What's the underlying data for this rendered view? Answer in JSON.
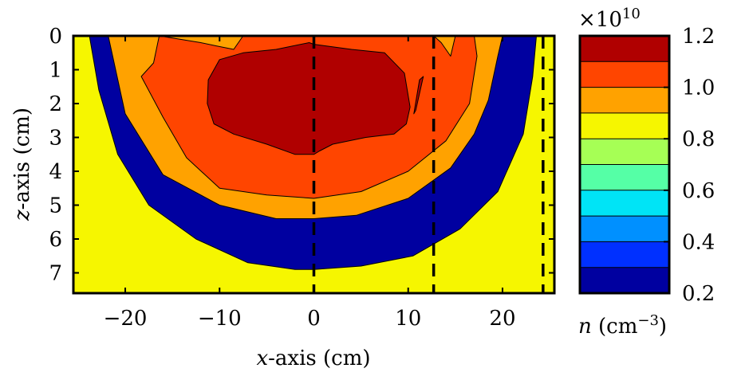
{
  "chart_data": {
    "type": "heatmap",
    "title": "",
    "xlabel_var": "x",
    "xlabel_rest": "-axis (cm)",
    "ylabel_var": "z",
    "ylabel_rest": "-axis (cm)",
    "xlim": [
      -25.5,
      25.5
    ],
    "ylim": [
      7.6,
      0
    ],
    "x_ticks": [
      -20,
      -10,
      0,
      10,
      20
    ],
    "x_tick_labels": [
      "−20",
      "−10",
      "0",
      "10",
      "20"
    ],
    "y_ticks": [
      0,
      1,
      2,
      3,
      4,
      5,
      6,
      7
    ],
    "y_tick_labels": [
      "0",
      "1",
      "2",
      "3",
      "4",
      "5",
      "6",
      "7"
    ],
    "dashed_lines_x": [
      0,
      12.7,
      24.3
    ],
    "colorbar": {
      "label_var": "n",
      "label_rest": " (cm",
      "label_exp": "−3",
      "label_close": ")",
      "multiplier_prefix": "×10",
      "multiplier_exp": "10",
      "levels": [
        0.2,
        0.3,
        0.4,
        0.5,
        0.6,
        0.7,
        0.8,
        0.9,
        1.0,
        1.1,
        1.2
      ],
      "colors": [
        "#0000a0",
        "#0030ff",
        "#0090ff",
        "#00e4f6",
        "#55ffa6",
        "#a6ff55",
        "#f6f600",
        "#ffa200",
        "#ff4500",
        "#b00000"
      ],
      "tick_values": [
        0.2,
        0.4,
        0.6,
        0.8,
        1.0,
        1.2
      ],
      "tick_labels": [
        "0.2",
        "0.4",
        "0.6",
        "0.8",
        "1.0",
        "1.2"
      ]
    },
    "contour_regions": [
      {
        "level": 0.4,
        "points": [
          [
            -25.5,
            7.6
          ],
          [
            -25.5,
            6.2
          ],
          [
            -24.6,
            6.8
          ],
          [
            -23.5,
            7.3
          ],
          [
            -22.5,
            7.6
          ]
        ]
      },
      {
        "level": 0.5,
        "points": [
          [
            -25.5,
            7.6
          ],
          [
            -25.5,
            2.2
          ],
          [
            -24.8,
            4.0
          ],
          [
            -23.5,
            5.6
          ],
          [
            -21.5,
            6.7
          ],
          [
            -19.0,
            7.6
          ]
        ]
      },
      {
        "level": 0.6,
        "points": [
          [
            -25.5,
            7.6
          ],
          [
            -25.5,
            0
          ],
          [
            -24.8,
            0
          ],
          [
            -24.2,
            2.0
          ],
          [
            -23.0,
            3.8
          ],
          [
            -21.0,
            5.4
          ],
          [
            -18.0,
            6.6
          ],
          [
            -14.5,
            7.6
          ]
        ]
      },
      {
        "level": 0.7,
        "points": [
          [
            -25.5,
            7.6
          ],
          [
            -25.5,
            0
          ],
          [
            -24.3,
            0
          ],
          [
            -23.7,
            1.4
          ],
          [
            -22.3,
            3.4
          ],
          [
            -20.2,
            5.0
          ],
          [
            -16.8,
            6.3
          ],
          [
            -12.0,
            7.2
          ],
          [
            -7.0,
            7.6
          ]
        ]
      },
      {
        "level": 0.8,
        "points": [
          [
            -25.5,
            7.6
          ],
          [
            -25.5,
            0
          ],
          [
            -23.8,
            0
          ],
          [
            -22.8,
            1.6
          ],
          [
            -20.8,
            3.5
          ],
          [
            -17.5,
            5.0
          ],
          [
            -12.5,
            6.0
          ],
          [
            -7.0,
            6.7
          ],
          [
            -2.0,
            6.9
          ],
          [
            0,
            6.9
          ],
          [
            5.0,
            6.8
          ],
          [
            10.5,
            6.5
          ],
          [
            15.5,
            5.7
          ],
          [
            19.5,
            4.6
          ],
          [
            22.2,
            2.9
          ],
          [
            23.2,
            1.2
          ],
          [
            23.6,
            0
          ],
          [
            25.5,
            0
          ],
          [
            25.5,
            7.6
          ]
        ]
      },
      {
        "level": 0.9,
        "points": [
          [
            -21.8,
            0
          ],
          [
            -20.0,
            2.3
          ],
          [
            -16.0,
            4.1
          ],
          [
            -10.0,
            5.0
          ],
          [
            -4.0,
            5.4
          ],
          [
            0,
            5.4
          ],
          [
            4.5,
            5.3
          ],
          [
            10.0,
            4.8
          ],
          [
            14.5,
            3.9
          ],
          [
            17.0,
            2.9
          ],
          [
            18.5,
            1.9
          ],
          [
            19.5,
            0.6
          ],
          [
            20.0,
            0
          ]
        ]
      },
      {
        "level": 1.0,
        "points": [
          [
            -16.4,
            0
          ],
          [
            -17.0,
            0.8
          ],
          [
            -18.3,
            1.2
          ],
          [
            -16.0,
            2.4
          ],
          [
            -13.5,
            3.6
          ],
          [
            -10.0,
            4.5
          ],
          [
            -5.0,
            4.7
          ],
          [
            0,
            4.8
          ],
          [
            5.0,
            4.6
          ],
          [
            10.0,
            4.0
          ],
          [
            14.0,
            3.1
          ],
          [
            16.5,
            2.0
          ],
          [
            17.3,
            0.6
          ],
          [
            17.0,
            0
          ],
          [
            15.0,
            0
          ],
          [
            14.5,
            0.6
          ],
          [
            13.5,
            0.2
          ],
          [
            12.7,
            0
          ],
          [
            -7.5,
            0
          ],
          [
            -8.5,
            0.4
          ],
          [
            -10.3,
            0.3
          ],
          [
            -12.0,
            0.2
          ]
        ]
      },
      {
        "level": 1.1,
        "points": [
          [
            -11.2,
            1.3
          ],
          [
            -10.0,
            0.7
          ],
          [
            -7.5,
            0.5
          ],
          [
            -4.0,
            0.4
          ],
          [
            -0.5,
            0.2
          ],
          [
            0,
            0.25
          ],
          [
            4.0,
            0.4
          ],
          [
            7.5,
            0.5
          ],
          [
            9.6,
            1.1
          ],
          [
            10.2,
            2.1
          ],
          [
            9.8,
            2.6
          ],
          [
            8.5,
            2.9
          ],
          [
            5.5,
            3.0
          ],
          [
            2.0,
            3.2
          ],
          [
            0.6,
            3.4
          ],
          [
            0,
            3.5
          ],
          [
            -2.0,
            3.5
          ],
          [
            -5.0,
            3.2
          ],
          [
            -8.5,
            2.9
          ],
          [
            -10.6,
            2.6
          ],
          [
            -11.3,
            2.0
          ]
        ]
      },
      {
        "level": 1.1,
        "points": [
          [
            11.2,
            1.3
          ],
          [
            11.6,
            1.2
          ],
          [
            10.8,
            2.2
          ],
          [
            10.6,
            2.3
          ]
        ]
      }
    ]
  }
}
